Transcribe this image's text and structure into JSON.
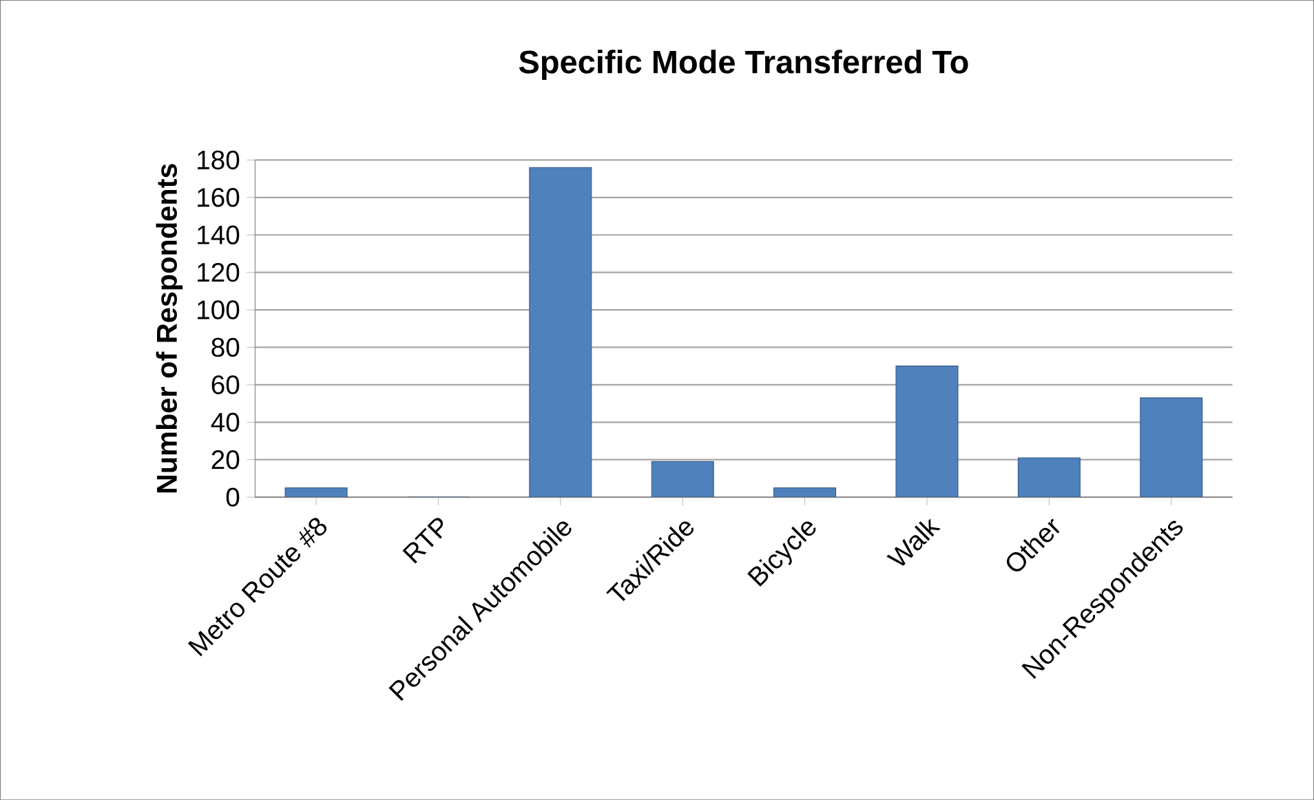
{
  "chart_data": {
    "type": "bar",
    "title": "Specific Mode Transferred To",
    "ylabel": "Number of Respondents",
    "categories": [
      "Metro Route #8",
      "RTP",
      "Personal Automobile",
      "Taxi/Ride",
      "Bicycle",
      "Walk",
      "Other",
      "Non-Respondents"
    ],
    "values": [
      5,
      0,
      176,
      19,
      5,
      70,
      21,
      53
    ],
    "color": "#4f81bd",
    "ylim": [
      0,
      180
    ],
    "yticks": [
      0,
      20,
      40,
      60,
      80,
      100,
      120,
      140,
      160,
      180
    ],
    "grid": "y"
  }
}
